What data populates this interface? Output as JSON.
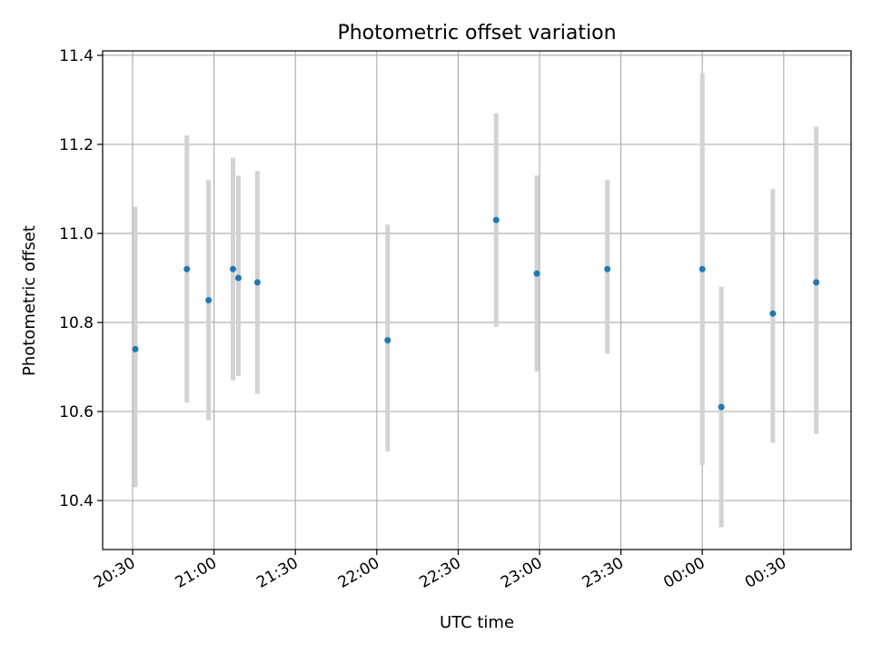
{
  "chart_data": {
    "type": "scatter",
    "title": "Photometric offset variation",
    "xlabel": "UTC time",
    "ylabel": "Photometric offset",
    "x_tick_labels": [
      "20:30",
      "21:00",
      "21:30",
      "22:00",
      "22:30",
      "23:00",
      "23:30",
      "00:00",
      "00:30"
    ],
    "y_tick_labels": [
      "10.4",
      "10.6",
      "10.8",
      "11.0",
      "11.2",
      "11.4"
    ],
    "y_ticks": [
      10.4,
      10.6,
      10.8,
      11.0,
      11.2,
      11.4
    ],
    "ylim": [
      10.29,
      11.41
    ],
    "grid": true,
    "colors": {
      "point": "#1f77b4",
      "errorbar": "#d3d3d3",
      "grid": "#b0b0b0"
    },
    "points": [
      {
        "x": "20:31",
        "y": 10.74,
        "y_low": 10.43,
        "y_high": 11.06
      },
      {
        "x": "20:50",
        "y": 10.92,
        "y_low": 10.62,
        "y_high": 11.22
      },
      {
        "x": "20:58",
        "y": 10.85,
        "y_low": 10.58,
        "y_high": 11.12
      },
      {
        "x": "21:07",
        "y": 10.92,
        "y_low": 10.67,
        "y_high": 11.17
      },
      {
        "x": "21:09",
        "y": 10.9,
        "y_low": 10.68,
        "y_high": 11.13
      },
      {
        "x": "21:16",
        "y": 10.89,
        "y_low": 10.64,
        "y_high": 11.14
      },
      {
        "x": "22:04",
        "y": 10.76,
        "y_low": 10.51,
        "y_high": 11.02
      },
      {
        "x": "22:44",
        "y": 11.03,
        "y_low": 10.79,
        "y_high": 11.27
      },
      {
        "x": "22:59",
        "y": 10.91,
        "y_low": 10.69,
        "y_high": 11.13
      },
      {
        "x": "23:25",
        "y": 10.92,
        "y_low": 10.73,
        "y_high": 11.12
      },
      {
        "x": "00:00",
        "y": 10.92,
        "y_low": 10.48,
        "y_high": 11.36
      },
      {
        "x": "00:07",
        "y": 10.61,
        "y_low": 10.34,
        "y_high": 10.88
      },
      {
        "x": "00:26",
        "y": 10.82,
        "y_low": 10.53,
        "y_high": 11.1
      },
      {
        "x": "00:42",
        "y": 10.89,
        "y_low": 10.55,
        "y_high": 11.24
      }
    ]
  }
}
